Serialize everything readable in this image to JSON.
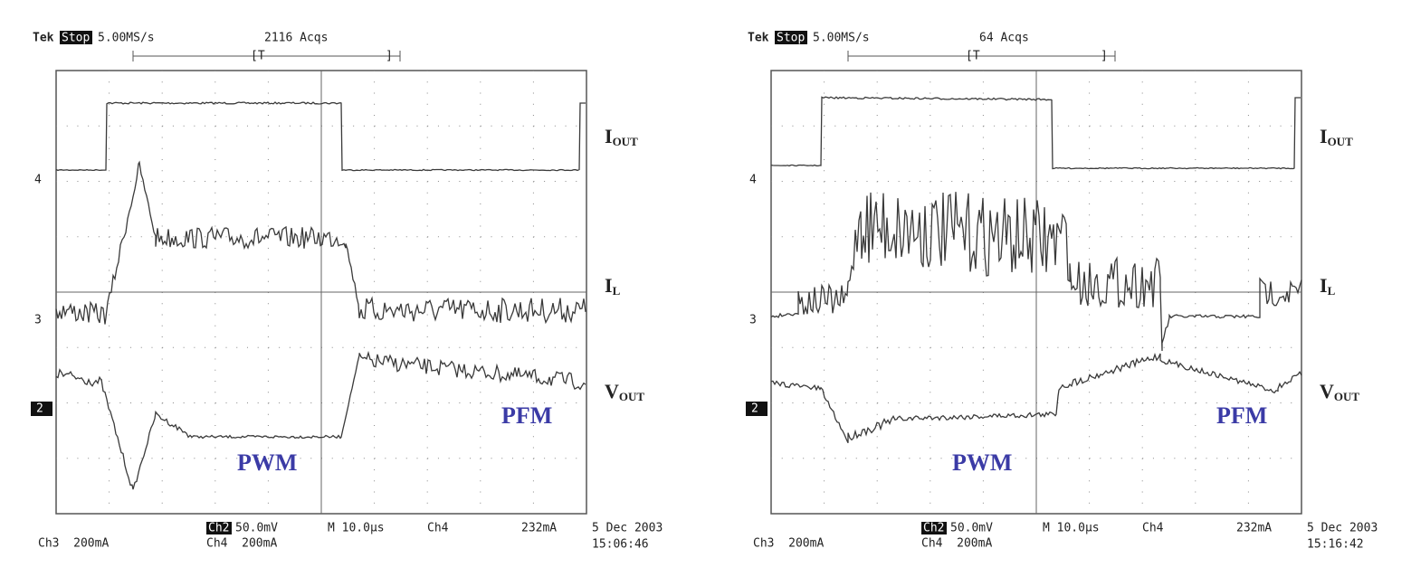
{
  "panels": [
    {
      "header": {
        "brand": "Tek",
        "mode": "Stop",
        "rate": "5.00MS/s",
        "acqs": "2116 Acqs",
        "trigger_open": "[T",
        "trigger_close": "]"
      },
      "markers": [
        "4",
        "3",
        "2"
      ],
      "labels": {
        "iout": {
          "main": "I",
          "sub": "OUT"
        },
        "il": {
          "main": "I",
          "sub": "L"
        },
        "vout": {
          "main": "V",
          "sub": "OUT"
        }
      },
      "modes": {
        "pwm": "PWM",
        "pfm": "PFM"
      },
      "footer": {
        "ch3": "Ch3  200mA",
        "ch2": "Ch2",
        "ch2_scale": "50.0mV",
        "timebase": "M 10.0µs",
        "trig_ch": "Ch4",
        "trig_level": "232mA",
        "ch4": "Ch4  200mA",
        "date": "5 Dec 2003",
        "time": "15:06:46"
      }
    },
    {
      "header": {
        "brand": "Tek",
        "mode": "Stop",
        "rate": "5.00MS/s",
        "acqs": "64 Acqs",
        "trigger_open": "[T",
        "trigger_close": "]"
      },
      "markers": [
        "4",
        "3",
        "2"
      ],
      "labels": {
        "iout": {
          "main": "I",
          "sub": "OUT"
        },
        "il": {
          "main": "I",
          "sub": "L"
        },
        "vout": {
          "main": "V",
          "sub": "OUT"
        }
      },
      "modes": {
        "pwm": "PWM",
        "pfm": "PFM"
      },
      "footer": {
        "ch3": "Ch3  200mA",
        "ch2": "Ch2",
        "ch2_scale": "50.0mV",
        "timebase": "M 10.0µs",
        "trig_ch": "Ch4",
        "trig_level": "232mA",
        "ch4": "Ch4  200mA",
        "date": "5 Dec 2003",
        "time": "15:16:42"
      }
    }
  ]
}
